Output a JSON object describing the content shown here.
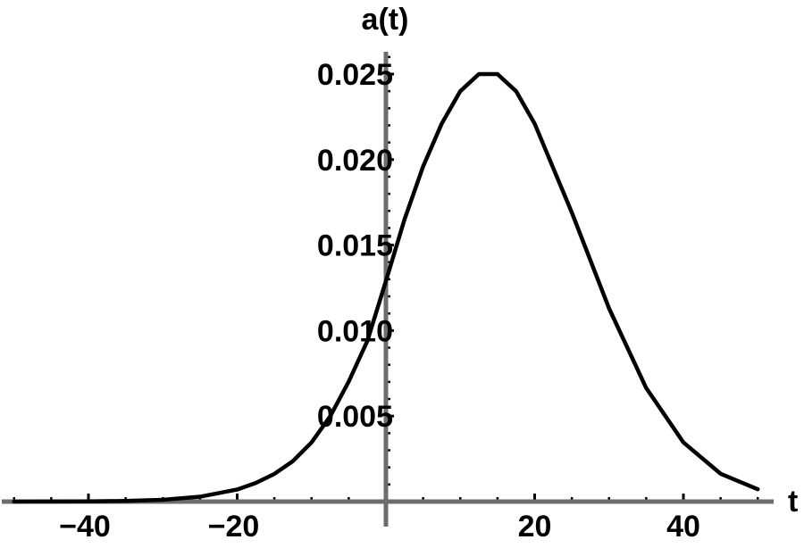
{
  "chart_data": {
    "type": "line",
    "xlabel": "t",
    "ylabel": "a(t)",
    "xlim": [
      -52,
      52
    ],
    "ylim": [
      0,
      0.0265
    ],
    "x_ticks": [
      {
        "value": -40,
        "label": "−40"
      },
      {
        "value": -20,
        "label": "−20"
      },
      {
        "value": 20,
        "label": "20"
      },
      {
        "value": 40,
        "label": "40"
      }
    ],
    "y_ticks": [
      {
        "value": 0.005,
        "label": "0.005"
      },
      {
        "value": 0.01,
        "label": "0.010"
      },
      {
        "value": 0.015,
        "label": "0.015"
      },
      {
        "value": 0.02,
        "label": "0.020"
      },
      {
        "value": 0.025,
        "label": "0.025"
      }
    ],
    "series": [
      {
        "color": "#000000",
        "x": [
          -50,
          -45,
          -40,
          -35,
          -30,
          -25,
          -20,
          -17.5,
          -15,
          -12.5,
          -10,
          -7.5,
          -5,
          -2.5,
          0,
          2.5,
          5,
          7.5,
          10,
          12.5,
          15,
          17.5,
          20,
          25,
          30,
          35,
          40,
          45,
          50
        ],
        "y": [
          1.5e-06,
          4.4e-06,
          1.3e-05,
          3.73e-05,
          0.000105,
          0.000285,
          0.000707,
          0.00109,
          0.00162,
          0.00237,
          0.00346,
          0.00498,
          0.00702,
          0.00939,
          0.0129,
          0.0165,
          0.0196,
          0.0221,
          0.024,
          0.025,
          0.025,
          0.024,
          0.0221,
          0.0169,
          0.0113,
          0.00664,
          0.00346,
          0.00163,
          0.00072
        ]
      }
    ],
    "colors": {
      "curve": "#000000",
      "axes": "#6d6d6d",
      "ticks": "#000000"
    }
  }
}
